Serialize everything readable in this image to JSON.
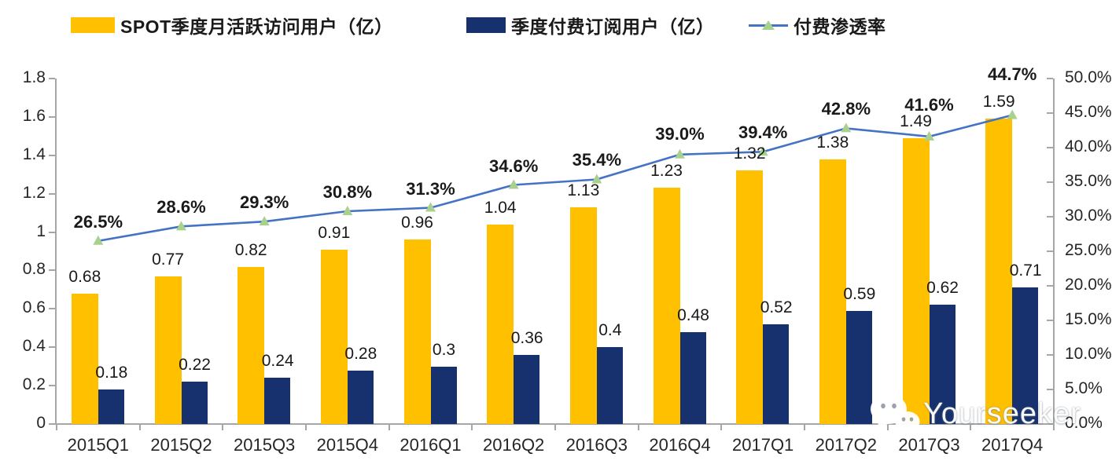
{
  "legend": {
    "items": [
      {
        "label": "SPOT季度月活跃访问用户（亿）",
        "swatch": "bar",
        "color": "#FFC000"
      },
      {
        "label": "季度付费订阅用户（亿）",
        "swatch": "bar",
        "color": "#16316D"
      },
      {
        "label": "付费渗透率",
        "swatch": "line-with-triangle-marker",
        "line_color": "#4472C4",
        "marker_color": "#A9D18E"
      }
    ]
  },
  "chart_data": {
    "type": "combo-bar-line",
    "categories": [
      "2015Q1",
      "2015Q2",
      "2015Q3",
      "2015Q4",
      "2016Q1",
      "2016Q2",
      "2016Q3",
      "2016Q4",
      "2017Q1",
      "2017Q2",
      "2017Q3",
      "2017Q4"
    ],
    "series": [
      {
        "name": "SPOT季度月活跃访问用户（亿）",
        "type": "bar",
        "axis": "left",
        "color": "#FFC000",
        "values": [
          0.68,
          0.77,
          0.82,
          0.91,
          0.96,
          1.04,
          1.13,
          1.23,
          1.32,
          1.38,
          1.49,
          1.59
        ],
        "labels": [
          "0.68",
          "0.77",
          "0.82",
          "0.91",
          "0.96",
          "1.04",
          "1.13",
          "1.23",
          "1.32",
          "1.38",
          "1.49",
          "1.59"
        ]
      },
      {
        "name": "季度付费订阅用户（亿）",
        "type": "bar",
        "axis": "left",
        "color": "#16316D",
        "values": [
          0.18,
          0.22,
          0.24,
          0.28,
          0.3,
          0.36,
          0.4,
          0.48,
          0.52,
          0.59,
          0.62,
          0.71
        ],
        "labels": [
          "0.18",
          "0.22",
          "0.24",
          "0.28",
          "0.3",
          "0.36",
          "0.4",
          "0.48",
          "0.52",
          "0.59",
          "0.62",
          "0.71"
        ]
      },
      {
        "name": "付费渗透率",
        "type": "line",
        "axis": "right",
        "color": "#4472C4",
        "marker": "triangle",
        "marker_color": "#A9D18E",
        "values": [
          26.5,
          28.6,
          29.3,
          30.8,
          31.3,
          34.6,
          35.4,
          39.0,
          39.4,
          42.8,
          41.6,
          44.7
        ],
        "labels": [
          "26.5%",
          "28.6%",
          "29.3%",
          "30.8%",
          "31.3%",
          "34.6%",
          "35.4%",
          "39.0%",
          "39.4%",
          "42.8%",
          "41.6%",
          "44.7%"
        ],
        "label_dy": [
          -25,
          -25,
          -25,
          -25,
          -25,
          -25,
          -25,
          -27,
          -25,
          -25,
          -41,
          -53
        ]
      }
    ],
    "left_axis": {
      "min": 0,
      "max": 1.8,
      "tick_labels": [
        "0",
        "0.2",
        "0.4",
        "0.6",
        "0.8",
        "1",
        "1.2",
        "1.4",
        "1.6",
        "1.8"
      ]
    },
    "right_axis": {
      "min": 0,
      "max": 50,
      "tick_labels": [
        "0.0%",
        "5.0%",
        "10.0%",
        "15.0%",
        "20.0%",
        "25.0%",
        "30.0%",
        "35.0%",
        "40.0%",
        "45.0%",
        "50.0%"
      ]
    },
    "grid": false,
    "legend_position": "top",
    "axis_color": "#A6A6A6"
  },
  "watermark": {
    "text": "Yourseeker",
    "icon": "wechat-chat-bubbles-icon"
  }
}
